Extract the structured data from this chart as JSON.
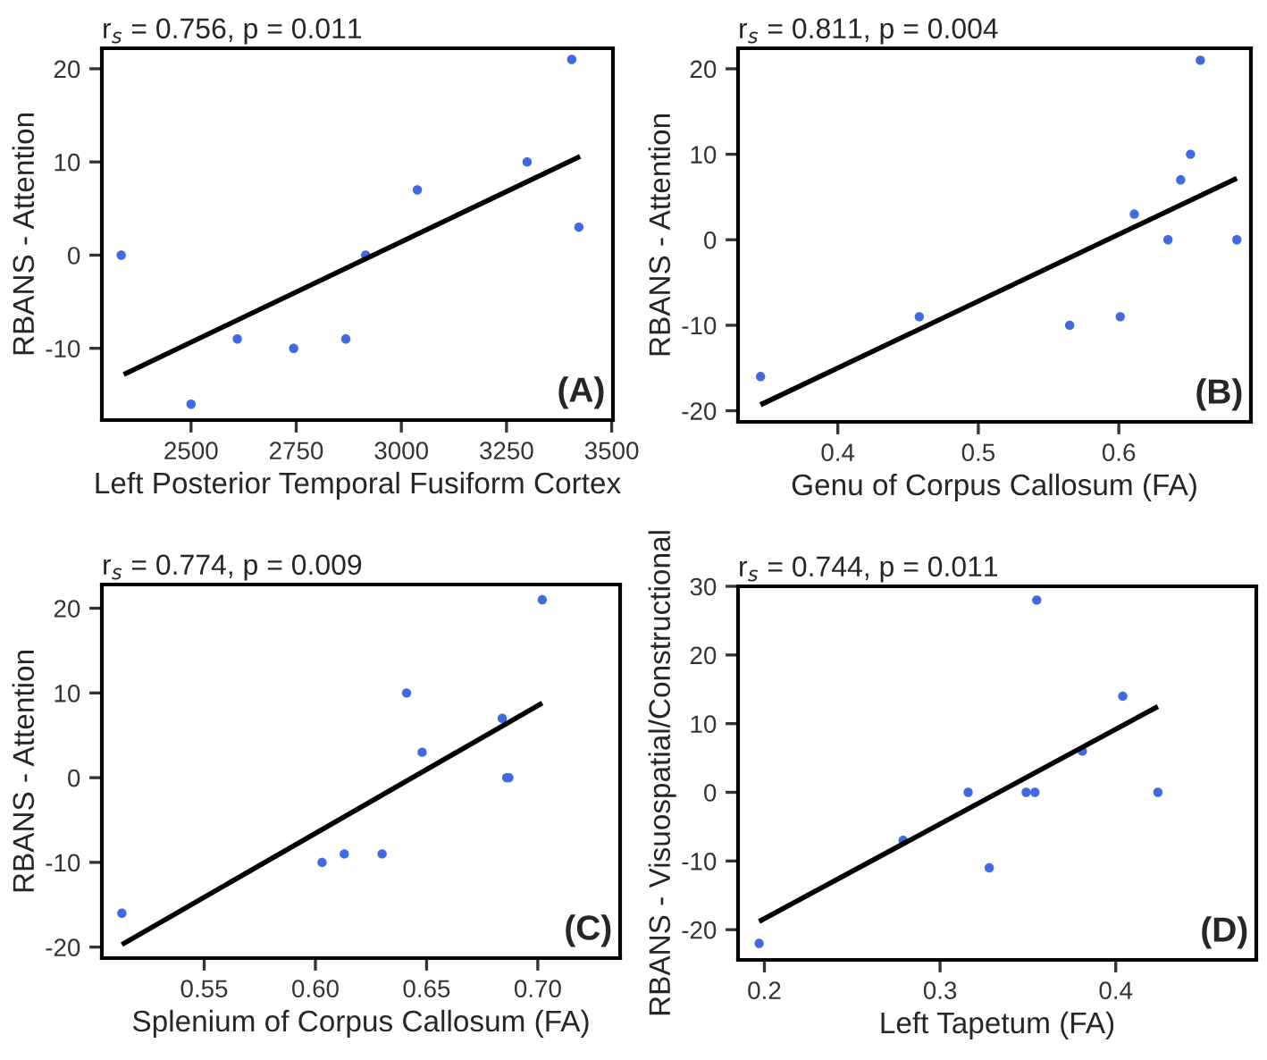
{
  "chart_data": [
    {
      "type": "scatter",
      "title": "r$_{s}$ = 0.756, p = 0.011",
      "xlabel": "Left Posterior Temporal Fusiform Cortex",
      "ylabel": "RBANS - Attention",
      "annotations": [
        "(A)"
      ],
      "xlim": [
        2288,
        3503
      ],
      "xticks": [
        2500,
        2750,
        3000,
        3250,
        3500
      ],
      "ylim": [
        -17.7,
        22.2
      ],
      "yticks": [
        -10,
        0,
        10,
        20
      ],
      "grid": false,
      "legend": false,
      "series": [
        {
          "color": "#4169e1",
          "x": [
            2334,
            2500,
            2610,
            2744,
            2868,
            2915,
            3038,
            3299,
            3405,
            3422
          ],
          "values": [
            0,
            -16,
            -9,
            -10,
            -9,
            0,
            7,
            10,
            21,
            3
          ]
        },
        {
          "type": "line",
          "color": "#000000",
          "x": [
            2340,
            3425
          ],
          "values": [
            -12.8,
            10.6
          ]
        }
      ]
    },
    {
      "type": "scatter",
      "title": "r$_{s}$ = 0.811, p = 0.004",
      "xlabel": "Genu of Corpus Callosum (FA)",
      "ylabel": "RBANS - Attention",
      "annotations": [
        "(B)"
      ],
      "xlim": [
        0.329,
        0.694
      ],
      "xticks": [
        0.4,
        0.5,
        0.6
      ],
      "ylim": [
        -21.3,
        22.4
      ],
      "yticks": [
        -20,
        -10,
        0,
        10,
        20
      ],
      "grid": false,
      "legend": false,
      "series": [
        {
          "color": "#4169e1",
          "x": [
            0.345,
            0.458,
            0.565,
            0.601,
            0.611,
            0.635,
            0.644,
            0.651,
            0.658,
            0.684
          ],
          "values": [
            -16,
            -9,
            -10,
            -9,
            3,
            0,
            7,
            10,
            21,
            0
          ]
        },
        {
          "type": "line",
          "color": "#000000",
          "x": [
            0.345,
            0.684
          ],
          "values": [
            -19.3,
            7.2
          ]
        }
      ]
    },
    {
      "type": "scatter",
      "title": "r$_{s}$ = 0.774, p = 0.009",
      "xlabel": "Splenium of Corpus Callosum (FA)",
      "ylabel": "RBANS - Attention",
      "annotations": [
        "(C)"
      ],
      "xlim": [
        0.504,
        0.737
      ],
      "xticks": [
        {
          "value": 0.55,
          "label": "0.55"
        },
        {
          "value": 0.6,
          "label": "0.60"
        },
        {
          "value": 0.65,
          "label": "0.65"
        },
        {
          "value": 0.7,
          "label": "0.70"
        }
      ],
      "ylim": [
        -21.3,
        22.8
      ],
      "yticks": [
        -20,
        -10,
        0,
        10,
        20
      ],
      "grid": false,
      "legend": false,
      "series": [
        {
          "color": "#4169e1",
          "x": [
            0.513,
            0.603,
            0.613,
            0.63,
            0.641,
            0.648,
            0.684,
            0.686,
            0.687,
            0.702
          ],
          "values": [
            -16,
            -10,
            -9,
            -9,
            10,
            3,
            7,
            0,
            0,
            21
          ]
        },
        {
          "type": "line",
          "color": "#000000",
          "x": [
            0.513,
            0.702
          ],
          "values": [
            -19.7,
            8.8
          ]
        }
      ]
    },
    {
      "type": "scatter",
      "title": "r$_{s}$ = 0.744, p = 0.011",
      "xlabel": "Left Tapetum (FA)",
      "ylabel": "RBANS - Visuospatial/Constructional",
      "annotations": [
        "(D)"
      ],
      "xlim": [
        0.185,
        0.48
      ],
      "xticks": [
        0.2,
        0.3,
        0.4
      ],
      "ylim": [
        -24.4,
        30
      ],
      "yticks": [
        -20,
        -10,
        0,
        10,
        20,
        30
      ],
      "grid": false,
      "legend": false,
      "series": [
        {
          "color": "#4169e1",
          "x": [
            0.197,
            0.279,
            0.316,
            0.328,
            0.349,
            0.354,
            0.355,
            0.381,
            0.404,
            0.424
          ],
          "values": [
            -22,
            -7,
            0,
            -11,
            0,
            0,
            28,
            6,
            14,
            0
          ]
        },
        {
          "type": "line",
          "color": "#000000",
          "x": [
            0.197,
            0.424
          ],
          "values": [
            -18.8,
            12.5
          ]
        }
      ]
    }
  ]
}
